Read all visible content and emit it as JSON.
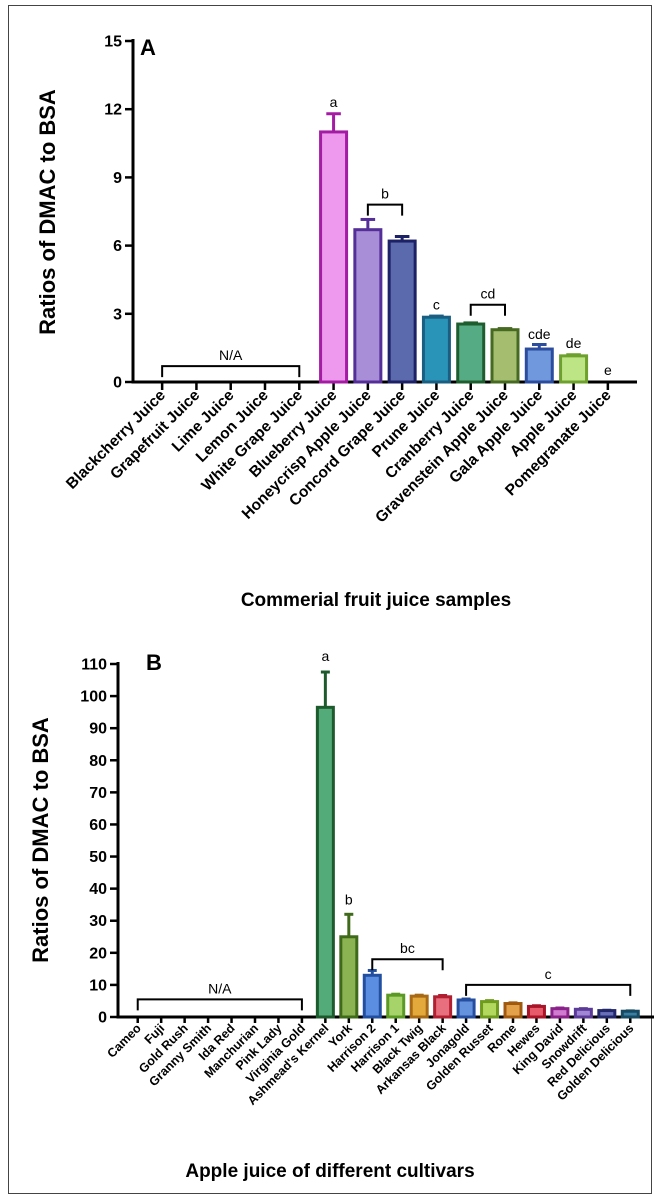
{
  "chart_data": [
    {
      "type": "bar",
      "panel_label": "A",
      "ylabel": "Ratios of DMAC to BSA",
      "xlabel": "Commerial fruit juice samples",
      "ylim": [
        0,
        15
      ],
      "yticks": [
        0,
        3,
        6,
        9,
        12,
        15
      ],
      "grid": false,
      "legend": "none",
      "categories": [
        "Blackcherry Juice",
        "Grapefruit Juice",
        "Lime Juice",
        "Lemon Juice",
        "White Grape Juice",
        "Blueberry Juice",
        "Honeycrisp Apple Juice",
        "Concord Grape Juice",
        "Prune Juice",
        "Cranberry Juice",
        "Gravenstein Apple Juice",
        "Gala Apple Juice",
        "Apple Juice",
        "Pomegranate Juice"
      ],
      "values": [
        0,
        0,
        0,
        0,
        0,
        11.0,
        6.7,
        6.2,
        2.85,
        2.55,
        2.3,
        1.45,
        1.15,
        0
      ],
      "errors": [
        0,
        0,
        0,
        0,
        0,
        0.8,
        0.45,
        0.2,
        0.05,
        0.05,
        0.05,
        0.2,
        0.05,
        0
      ],
      "colors": [
        "#333333",
        "#333333",
        "#333333",
        "#333333",
        "#333333",
        "#ee99ee",
        "#a88ed6",
        "#5a6aac",
        "#2a93b8",
        "#54ab84",
        "#a4bd6e",
        "#6f98dd",
        "#bde586",
        "#333333"
      ],
      "edge_colors": [
        "#111111",
        "#111111",
        "#111111",
        "#111111",
        "#111111",
        "#a31ca3",
        "#552f98",
        "#1d2165",
        "#1a5f82",
        "#1e5e2e",
        "#466a22",
        "#2c4d9e",
        "#6da02c",
        "#111111"
      ],
      "annotations": [
        {
          "text": "N/A",
          "bracket": [
            0,
            4
          ],
          "y": 0.7
        },
        {
          "text": "a",
          "bars": [
            5
          ],
          "y": 12.1
        },
        {
          "text": "b",
          "bracket": [
            6,
            7
          ],
          "y": 7.8
        },
        {
          "text": "c",
          "bars": [
            8
          ],
          "y": 3.2
        },
        {
          "text": "cd",
          "bracket": [
            9,
            10
          ],
          "y": 3.4
        },
        {
          "text": "cde",
          "bars": [
            11
          ],
          "y": 1.9
        },
        {
          "text": "de",
          "bars": [
            12
          ],
          "y": 1.5
        },
        {
          "text": "e",
          "bars": [
            13
          ],
          "y": 0.3
        }
      ]
    },
    {
      "type": "bar",
      "panel_label": "B",
      "ylabel": "Ratios of DMAC to BSA",
      "xlabel": "Apple juice of different cultivars",
      "ylim": [
        0,
        110
      ],
      "yticks": [
        0,
        10,
        20,
        30,
        40,
        50,
        60,
        70,
        80,
        90,
        100,
        110
      ],
      "grid": false,
      "legend": "none",
      "categories": [
        "Cameo",
        "Fuji",
        "Gold Rush",
        "Granny Smith",
        "Ida Red",
        "Manchurian",
        "Pink Lady",
        "Virginia Gold",
        "Ashmead's Kernel",
        "York",
        "Harrison 2",
        "Harrison 1",
        "Black Twig",
        "Arkansas Black",
        "Jonagold",
        "Golden Russet",
        "Rome",
        "Hewes",
        "King David",
        "Snowdrift",
        "Red Delicious",
        "Golden Delicious"
      ],
      "values": [
        0,
        0,
        0,
        0,
        0,
        0,
        0,
        0,
        96.5,
        25.0,
        13.0,
        6.8,
        6.5,
        6.3,
        5.3,
        4.8,
        4.2,
        3.3,
        2.6,
        2.4,
        2.0,
        1.8
      ],
      "errors": [
        0,
        0,
        0,
        0,
        0,
        0,
        0,
        0,
        11.0,
        7.0,
        1.5,
        0.3,
        0.3,
        0.4,
        0.3,
        0.3,
        0.2,
        0.2,
        0.2,
        0.2,
        0.1,
        0.1
      ],
      "colors": [
        "#333333",
        "#333333",
        "#333333",
        "#333333",
        "#333333",
        "#333333",
        "#333333",
        "#333333",
        "#54ab7a",
        "#8bb352",
        "#5b8ee0",
        "#a7d46a",
        "#e3a93a",
        "#e86f7d",
        "#6592dd",
        "#b2d95e",
        "#e3a14a",
        "#e75a6a",
        "#d07ad0",
        "#a186d6",
        "#6a70b8",
        "#3a7fa2"
      ],
      "edge_colors": [
        "#111111",
        "#111111",
        "#111111",
        "#111111",
        "#111111",
        "#111111",
        "#111111",
        "#111111",
        "#1d5a2c",
        "#3f6a1a",
        "#234fa0",
        "#5a9a24",
        "#a86a14",
        "#b21f30",
        "#264e9e",
        "#6f9c1e",
        "#a05a10",
        "#a81428",
        "#8a228a",
        "#5b3a98",
        "#23286a",
        "#154a62"
      ],
      "annotations": [
        {
          "text": "N/A",
          "bracket": [
            0,
            7
          ],
          "y": 5.5
        },
        {
          "text": "a",
          "bars": [
            8
          ],
          "y": 111
        },
        {
          "text": "b",
          "bars": [
            9
          ],
          "y": 35
        },
        {
          "text": "bc",
          "bracket": [
            10,
            13
          ],
          "y": 18
        },
        {
          "text": "c",
          "bracket": [
            14,
            21
          ],
          "y": 10
        }
      ]
    }
  ]
}
